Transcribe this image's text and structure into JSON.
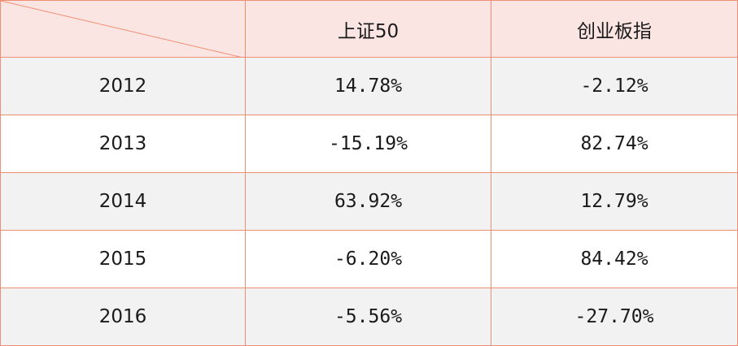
{
  "header": {
    "col1": "上证50",
    "col2": "创业板指"
  },
  "rows": [
    {
      "year": "2012",
      "sz50": "14.78%",
      "cyb": "-2.12%"
    },
    {
      "year": "2013",
      "sz50": "-15.19%",
      "cyb": "82.74%"
    },
    {
      "year": "2014",
      "sz50": "63.92%",
      "cyb": "12.79%"
    },
    {
      "year": "2015",
      "sz50": "-6.20%",
      "cyb": "84.42%"
    },
    {
      "year": "2016",
      "sz50": "-5.56%",
      "cyb": "-27.70%"
    }
  ],
  "colors": {
    "border": "#ee8f73",
    "header_bg": "#fbe5e3",
    "stripe_bg": "#f2f2f2"
  }
}
